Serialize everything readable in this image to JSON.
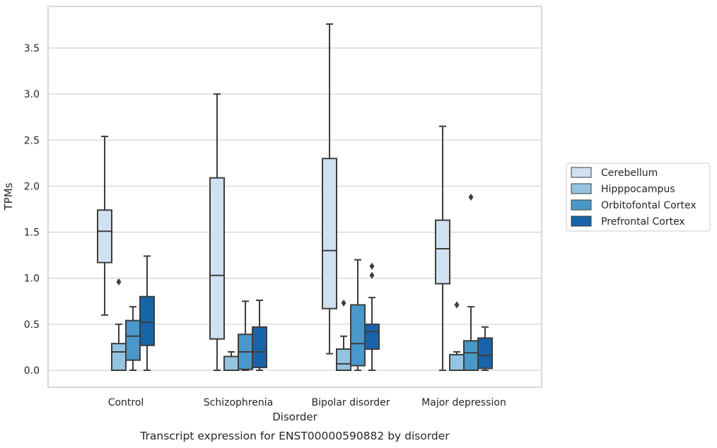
{
  "caption": "Transcript expression for ENST00000590882 by disorder",
  "chart_data": {
    "type": "box",
    "xlabel": "Disorder",
    "ylabel": "TPMs",
    "ylim": [
      -0.18,
      3.9
    ],
    "yticks": [
      0.0,
      0.5,
      1.0,
      1.5,
      2.0,
      2.5,
      3.0,
      3.5
    ],
    "ytick_labels": [
      "0.0",
      "0.5",
      "1.0",
      "1.5",
      "2.0",
      "2.5",
      "3.0",
      "3.5"
    ],
    "grid": "horizontal",
    "legend_position": "right-outside",
    "categories": [
      "Control",
      "Schizophrenia",
      "Bipolar disorder",
      "Major depression"
    ],
    "series": [
      {
        "name": "Cerebellum",
        "color": "#d0e1f2",
        "boxes": [
          {
            "whislo": 0.6,
            "q1": 1.17,
            "med": 1.51,
            "q3": 1.74,
            "whishi": 2.54,
            "fliers": []
          },
          {
            "whislo": 0.0,
            "q1": 0.34,
            "med": 1.03,
            "q3": 2.09,
            "whishi": 3.0,
            "fliers": []
          },
          {
            "whislo": 0.18,
            "q1": 0.67,
            "med": 1.3,
            "q3": 2.3,
            "whishi": 3.76,
            "fliers": []
          },
          {
            "whislo": 0.0,
            "q1": 0.94,
            "med": 1.32,
            "q3": 1.63,
            "whishi": 2.65,
            "fliers": []
          }
        ]
      },
      {
        "name": "Hipppocampus",
        "color": "#94c4df",
        "boxes": [
          {
            "whislo": 0.0,
            "q1": 0.0,
            "med": 0.2,
            "q3": 0.29,
            "whishi": 0.5,
            "fliers": [
              0.96
            ]
          },
          {
            "whislo": 0.0,
            "q1": 0.0,
            "med": 0.0,
            "q3": 0.15,
            "whishi": 0.2,
            "fliers": []
          },
          {
            "whislo": 0.0,
            "q1": 0.0,
            "med": 0.07,
            "q3": 0.23,
            "whishi": 0.37,
            "fliers": [
              0.73
            ]
          },
          {
            "whislo": 0.0,
            "q1": 0.0,
            "med": 0.0,
            "q3": 0.17,
            "whishi": 0.2,
            "fliers": [
              0.71
            ]
          }
        ]
      },
      {
        "name": "Orbitofontal Cortex",
        "color": "#4a98c9",
        "boxes": [
          {
            "whislo": 0.0,
            "q1": 0.11,
            "med": 0.37,
            "q3": 0.54,
            "whishi": 0.69,
            "fliers": []
          },
          {
            "whislo": 0.0,
            "q1": 0.01,
            "med": 0.2,
            "q3": 0.39,
            "whishi": 0.75,
            "fliers": []
          },
          {
            "whislo": 0.0,
            "q1": 0.05,
            "med": 0.29,
            "q3": 0.71,
            "whishi": 1.2,
            "fliers": []
          },
          {
            "whislo": 0.0,
            "q1": 0.0,
            "med": 0.19,
            "q3": 0.32,
            "whishi": 0.69,
            "fliers": [
              1.88
            ]
          }
        ]
      },
      {
        "name": "Prefrontal Cortex",
        "color": "#1764ab",
        "boxes": [
          {
            "whislo": 0.0,
            "q1": 0.27,
            "med": 0.52,
            "q3": 0.8,
            "whishi": 1.24,
            "fliers": []
          },
          {
            "whislo": 0.0,
            "q1": 0.03,
            "med": 0.2,
            "q3": 0.47,
            "whishi": 0.76,
            "fliers": []
          },
          {
            "whislo": 0.0,
            "q1": 0.23,
            "med": 0.42,
            "q3": 0.5,
            "whishi": 0.79,
            "fliers": [
              1.03,
              1.13
            ]
          },
          {
            "whislo": 0.0,
            "q1": 0.02,
            "med": 0.16,
            "q3": 0.35,
            "whishi": 0.47,
            "fliers": []
          }
        ]
      }
    ]
  }
}
